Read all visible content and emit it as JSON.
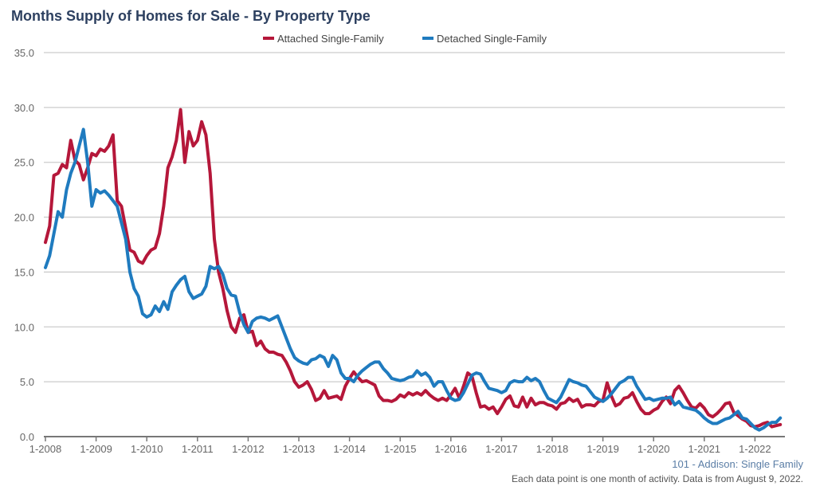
{
  "chart_data": {
    "type": "line",
    "title": "Months Supply of Homes for Sale - By Property Type",
    "x_ticks": [
      "1-2008",
      "1-2009",
      "1-2010",
      "1-2011",
      "1-2012",
      "1-2013",
      "1-2014",
      "1-2015",
      "1-2016",
      "1-2017",
      "1-2018",
      "1-2019",
      "1-2020",
      "1-2021",
      "1-2022"
    ],
    "x_start": "1-2008",
    "x_step": "month",
    "y_ticks": [
      "0.0",
      "5.0",
      "10.0",
      "15.0",
      "20.0",
      "25.0",
      "30.0",
      "35.0"
    ],
    "ylim": [
      0,
      35
    ],
    "grid": "horizontal",
    "legend_position": "top-center",
    "series": [
      {
        "name": "Attached Single-Family",
        "color": "#b5173a",
        "values": [
          17.7,
          19.2,
          23.8,
          24,
          24.8,
          24.5,
          27,
          25.2,
          24.8,
          23.4,
          24.5,
          25.8,
          25.6,
          26.2,
          26,
          26.5,
          27.5,
          21.5,
          21,
          19,
          17,
          16.8,
          16,
          15.8,
          16.5,
          17,
          17.2,
          18.5,
          21,
          24.5,
          25.5,
          27,
          29.8,
          25,
          27.8,
          26.5,
          27,
          28.7,
          27.5,
          24,
          18,
          15,
          13.5,
          11.5,
          10,
          9.5,
          10.8,
          11.1,
          9.5,
          9.6,
          8.3,
          8.7,
          8,
          7.7,
          7.7,
          7.5,
          7.4,
          6.8,
          6,
          5,
          4.5,
          4.7,
          5,
          4.3,
          3.3,
          3.5,
          4.2,
          3.5,
          3.6,
          3.7,
          3.4,
          4.6,
          5.3,
          5.9,
          5.4,
          5,
          5.1,
          4.9,
          4.7,
          3.7,
          3.3,
          3.3,
          3.2,
          3.4,
          3.8,
          3.6,
          4,
          3.8,
          4,
          3.8,
          4.2,
          3.8,
          3.5,
          3.3,
          3.5,
          3.3,
          3.8,
          4.4,
          3.5,
          4.6,
          5.8,
          5.5,
          4,
          2.7,
          2.8,
          2.5,
          2.7,
          2.1,
          2.7,
          3.4,
          3.7,
          2.8,
          2.7,
          3.6,
          2.7,
          3.5,
          2.9,
          3.1,
          3.1,
          2.9,
          2.8,
          2.5,
          3,
          3.1,
          3.5,
          3.2,
          3.4,
          2.7,
          2.9,
          2.9,
          2.8,
          3.2,
          3.3,
          4.9,
          3.7,
          2.8,
          3,
          3.5,
          3.6,
          4,
          3.2,
          2.5,
          2.1,
          2.1,
          2.4,
          2.6,
          3.2,
          3.6,
          3,
          4.2,
          4.6,
          4,
          3.3,
          2.7,
          2.6,
          3,
          2.6,
          2,
          1.8,
          2.1,
          2.5,
          3,
          3.1,
          2.2,
          1.9,
          1.6,
          1.4,
          1.0,
          0.9,
          1,
          1.2,
          1.3,
          0.9,
          1.0,
          1.1
        ]
      },
      {
        "name": "Detached Single-Family",
        "color": "#1f7bbf",
        "values": [
          15.4,
          16.5,
          18.5,
          20.5,
          20,
          22.5,
          24,
          25,
          26.5,
          28,
          25,
          21,
          22.5,
          22.2,
          22.4,
          22,
          21.5,
          21,
          19.5,
          18,
          15,
          13.5,
          12.8,
          11.2,
          10.9,
          11.1,
          11.9,
          11.4,
          12.3,
          11.6,
          13.2,
          13.8,
          14.3,
          14.6,
          13.2,
          12.6,
          12.8,
          13,
          13.7,
          15.5,
          15.3,
          15.5,
          14.8,
          13.5,
          12.9,
          12.8,
          11.3,
          10.2,
          9.5,
          10.5,
          10.8,
          10.9,
          10.8,
          10.6,
          10.8,
          11,
          10,
          9,
          8,
          7.2,
          6.9,
          6.7,
          6.6,
          7,
          7.1,
          7.4,
          7.2,
          6.4,
          7.4,
          7,
          5.8,
          5.3,
          5.3,
          5,
          5.6,
          6,
          6.3,
          6.6,
          6.8,
          6.8,
          6.2,
          5.8,
          5.3,
          5.2,
          5.1,
          5.2,
          5.4,
          5.5,
          6,
          5.6,
          5.8,
          5.4,
          4.6,
          5,
          5,
          4.2,
          3.5,
          3.3,
          3.4,
          4,
          4.8,
          5.6,
          5.8,
          5.7,
          5,
          4.4,
          4.3,
          4.2,
          4,
          4.2,
          4.9,
          5.1,
          5,
          5,
          5.4,
          5.1,
          5.3,
          5,
          4.2,
          3.5,
          3.3,
          3.1,
          3.6,
          4.4,
          5.2,
          5.0,
          4.9,
          4.7,
          4.6,
          4.1,
          3.6,
          3.4,
          3.2,
          3.5,
          3.9,
          4.4,
          4.9,
          5.1,
          5.4,
          5.4,
          4.6,
          4,
          3.4,
          3.5,
          3.3,
          3.4,
          3.5,
          3.5,
          3.6,
          2.9,
          3.2,
          2.7,
          2.6,
          2.5,
          2.4,
          2.1,
          1.7,
          1.4,
          1.2,
          1.2,
          1.4,
          1.6,
          1.7,
          2.0,
          2.3,
          1.7,
          1.6,
          1.2,
          0.8,
          0.6,
          0.8,
          1.1,
          1.3,
          1.3,
          1.7
        ]
      }
    ]
  },
  "footer": {
    "source": "101 - Addison: Single Family",
    "note": "Each data point is one month of activity. Data is from August 9, 2022."
  }
}
